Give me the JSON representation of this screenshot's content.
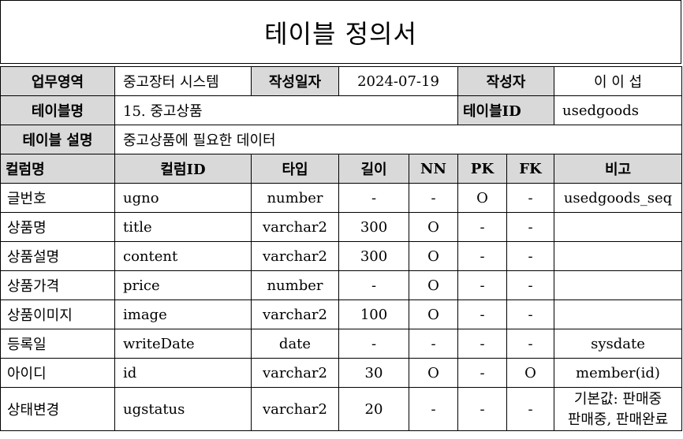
{
  "doc": {
    "title": "테이블 정의서"
  },
  "meta": {
    "area_label": "업무영역",
    "area_value": "중고장터 시스템",
    "date_label": "작성일자",
    "date_value": "2024-07-19",
    "author_label": "작성자",
    "author_value": "이 이 섭",
    "table_name_label": "테이블명",
    "table_name_value": "15. 중고상품",
    "table_id_label": "테이블ID",
    "table_id_value": "usedgoods",
    "desc_label": "테이블 설명",
    "desc_value": "중고상품에 필요한 데이터"
  },
  "columns_header": {
    "name": "컬럼명",
    "id": "컬럼ID",
    "type": "타입",
    "length": "길이",
    "nn": "NN",
    "pk": "PK",
    "fk": "FK",
    "note": "비고"
  },
  "rows": [
    {
      "name": "글번호",
      "id": "ugno",
      "type": "number",
      "length": "-",
      "nn": "-",
      "pk": "O",
      "fk": "-",
      "note": "usedgoods_seq"
    },
    {
      "name": "상품명",
      "id": "title",
      "type": "varchar2",
      "length": "300",
      "nn": "O",
      "pk": "-",
      "fk": "-",
      "note": ""
    },
    {
      "name": "상품설명",
      "id": "content",
      "type": "varchar2",
      "length": "300",
      "nn": "O",
      "pk": "-",
      "fk": "-",
      "note": ""
    },
    {
      "name": "상품가격",
      "id": "price",
      "type": "number",
      "length": "-",
      "nn": "O",
      "pk": "-",
      "fk": "-",
      "note": ""
    },
    {
      "name": "상품이미지",
      "id": "image",
      "type": "varchar2",
      "length": "100",
      "nn": "O",
      "pk": "-",
      "fk": "-",
      "note": ""
    },
    {
      "name": "등록일",
      "id": "writeDate",
      "type": "date",
      "length": "-",
      "nn": "-",
      "pk": "-",
      "fk": "-",
      "note": "sysdate"
    },
    {
      "name": "아이디",
      "id": "id",
      "type": "varchar2",
      "length": "30",
      "nn": "O",
      "pk": "-",
      "fk": "O",
      "note": "member(id)"
    },
    {
      "name": "상태변경",
      "id": "ugstatus",
      "type": "varchar2",
      "length": "20",
      "nn": "-",
      "pk": "-",
      "fk": "-",
      "note_line1": "기본값: 판매중",
      "note_line2": "판매중, 판매완료"
    }
  ]
}
